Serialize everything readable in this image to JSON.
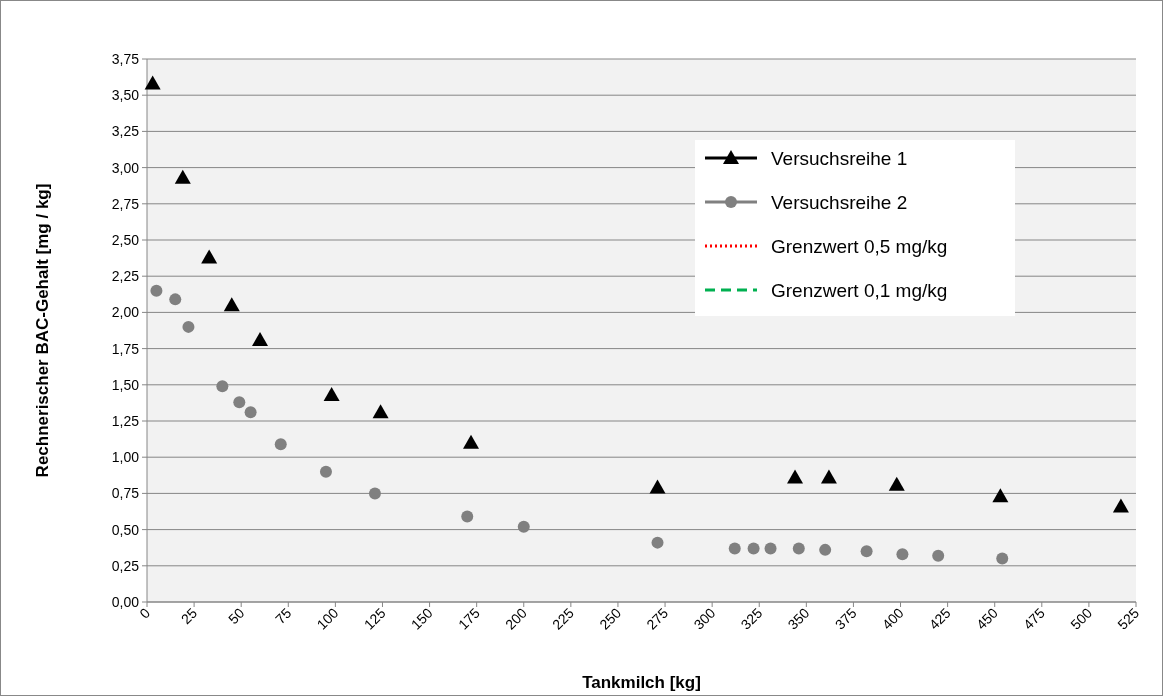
{
  "chart_data": {
    "type": "scatter",
    "xlabel": "Tankmilch $_{}$[kg]",
    "ylabel": "Rechnerischer BAC-Gehalt  [mg / kg]",
    "xlim": [
      0,
      525
    ],
    "xticks": [
      0,
      25,
      50,
      75,
      100,
      125,
      150,
      175,
      200,
      225,
      250,
      275,
      300,
      325,
      350,
      375,
      400,
      425,
      450,
      475,
      500,
      525
    ],
    "ylim": [
      0,
      3.75
    ],
    "yticks": [
      {
        "value": 0,
        "label": "0,00"
      },
      {
        "value": 0.25,
        "label": "0,25"
      },
      {
        "value": 0.5,
        "label": "0,50"
      },
      {
        "value": 0.75,
        "label": "0,75"
      },
      {
        "value": 1,
        "label": "1,00"
      },
      {
        "value": 1.25,
        "label": "1,25"
      },
      {
        "value": 1.5,
        "label": "1,50"
      },
      {
        "value": 1.75,
        "label": "1,75"
      },
      {
        "value": 2,
        "label": "2,00"
      },
      {
        "value": 2.25,
        "label": "2,25"
      },
      {
        "value": 2.5,
        "label": "2,50"
      },
      {
        "value": 2.75,
        "label": "2,75"
      },
      {
        "value": 3,
        "label": "3,00"
      },
      {
        "value": 3.25,
        "label": "3,25"
      },
      {
        "value": 3.5,
        "label": "3,50"
      },
      {
        "value": 3.75,
        "label": "3,75"
      }
    ],
    "grid": "y",
    "legend": "top right",
    "series": [
      {
        "name": "Versuchsreihe 1",
        "color": "#000000",
        "marker": "triangle",
        "x": [
          3,
          19,
          33,
          45,
          60,
          98,
          124,
          172,
          271,
          344,
          362,
          398,
          453,
          517
        ],
        "values": [
          3.58,
          2.93,
          2.38,
          2.05,
          1.81,
          1.43,
          1.31,
          1.1,
          0.79,
          0.86,
          0.86,
          0.81,
          0.73,
          0.66
        ]
      },
      {
        "name": "Versuchsreihe 2",
        "color": "#808080",
        "marker": "circle",
        "x": [
          5,
          15,
          22,
          40,
          49,
          55,
          71,
          95,
          121,
          170,
          200,
          271,
          312,
          322,
          331,
          346,
          360,
          382,
          401,
          420,
          454
        ],
        "values": [
          2.15,
          2.09,
          1.9,
          1.49,
          1.38,
          1.31,
          1.09,
          0.9,
          0.75,
          0.59,
          0.52,
          0.41,
          0.37,
          0.37,
          0.37,
          0.37,
          0.36,
          0.35,
          0.33,
          0.32,
          0.3
        ]
      },
      {
        "name": "Grenzwert 0,5 mg/kg",
        "type": "line",
        "color": "#ff0000",
        "line_style": "dotted",
        "marker": "none"
      },
      {
        "name": "Grenzwert 0,1 mg/kg",
        "type": "line",
        "color": "#00b050",
        "line_style": "dashed",
        "marker": "none"
      }
    ]
  }
}
